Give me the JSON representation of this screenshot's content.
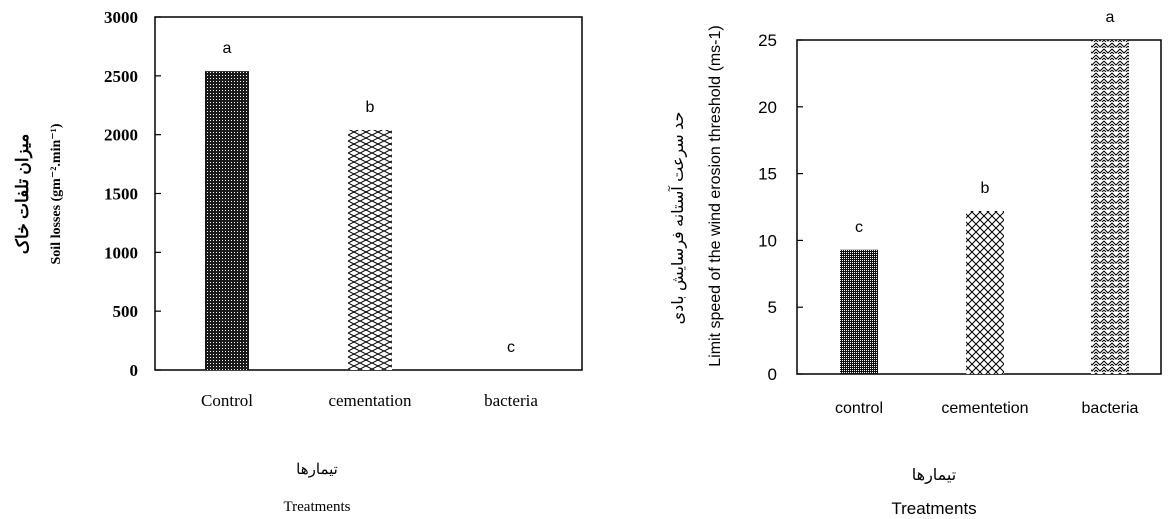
{
  "chart_data": [
    {
      "type": "bar",
      "categories": [
        "Control",
        "cementation",
        "bacteria"
      ],
      "values": [
        2540,
        2040,
        0
      ],
      "letters": [
        "a",
        "b",
        "c"
      ],
      "ylabel_fa": "میزان تلفات خاک",
      "ylabel": "Soil losses (gm⁻².min⁻¹)",
      "xlabel_fa": "تیمارها",
      "xlabel": "Treatments",
      "ylim": [
        0,
        3000
      ],
      "yticks": [
        0,
        500,
        1000,
        1500,
        2000,
        2500,
        3000
      ],
      "bar_patterns": [
        "dense-dots",
        "brick",
        "none"
      ],
      "grid": false,
      "legend": "none"
    },
    {
      "type": "bar",
      "categories": [
        "control",
        "cementetion",
        "bacteria"
      ],
      "values": [
        9.3,
        12.2,
        25
      ],
      "letters": [
        "c",
        "b",
        "a"
      ],
      "ylabel_fa": "حد سرعت آستانه فرسایش بادی",
      "ylabel": "Limit speed of the  wind erosion threshold (ms-1)",
      "xlabel_fa": "تیمارها",
      "xlabel": "Treatments",
      "ylim": [
        0,
        25
      ],
      "yticks": [
        0,
        5,
        10,
        15,
        20,
        25
      ],
      "bar_patterns": [
        "fine-dots",
        "crosshatch",
        "zigzag"
      ],
      "grid": false,
      "legend": "none"
    }
  ]
}
